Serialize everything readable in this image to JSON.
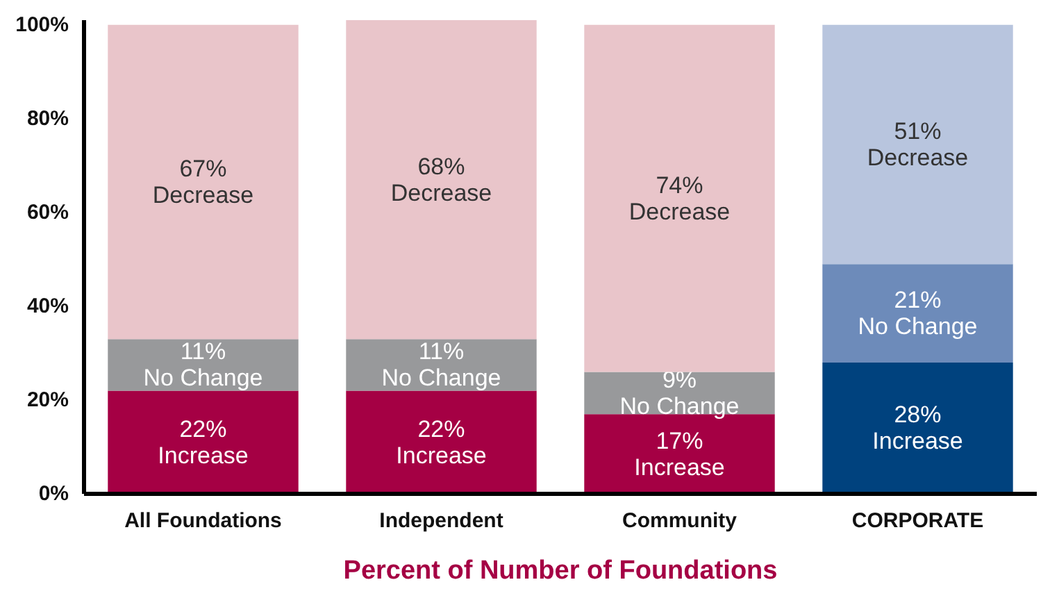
{
  "chart_data": {
    "type": "bar",
    "stacked": true,
    "xlabel": "Percent of Number of Foundations",
    "categories": [
      "All Foundations",
      "Independent",
      "Community",
      "CORPORATE"
    ],
    "series": [
      {
        "name": "Increase",
        "colors": [
          "#a50044",
          "#a50044",
          "#a50044",
          "#00427e"
        ],
        "values": [
          22,
          22,
          17,
          28
        ],
        "value_labels": [
          "22%",
          "22%",
          "17%",
          "28%"
        ]
      },
      {
        "name": "No Change",
        "colors": [
          "#98999b",
          "#98999b",
          "#98999b",
          "#6d8bba"
        ],
        "values": [
          11,
          11,
          9,
          21
        ],
        "value_labels": [
          "11%",
          "11%",
          "9%",
          "21%"
        ]
      },
      {
        "name": "Decrease",
        "colors": [
          "#e9c5ca",
          "#e9c5ca",
          "#e9c5ca",
          "#b8c5de"
        ],
        "values": [
          67,
          68,
          74,
          51
        ],
        "value_labels": [
          "67%",
          "68%",
          "74%",
          "51%"
        ]
      }
    ],
    "ylim": [
      0,
      101
    ],
    "yticks": [
      {
        "value": 0,
        "label": "0%"
      },
      {
        "value": 20,
        "label": "20%"
      },
      {
        "value": 40,
        "label": "40%"
      },
      {
        "value": 60,
        "label": "60%"
      },
      {
        "value": 80,
        "label": "80%"
      },
      {
        "value": 100,
        "label": "100%"
      }
    ],
    "grid": false
  }
}
